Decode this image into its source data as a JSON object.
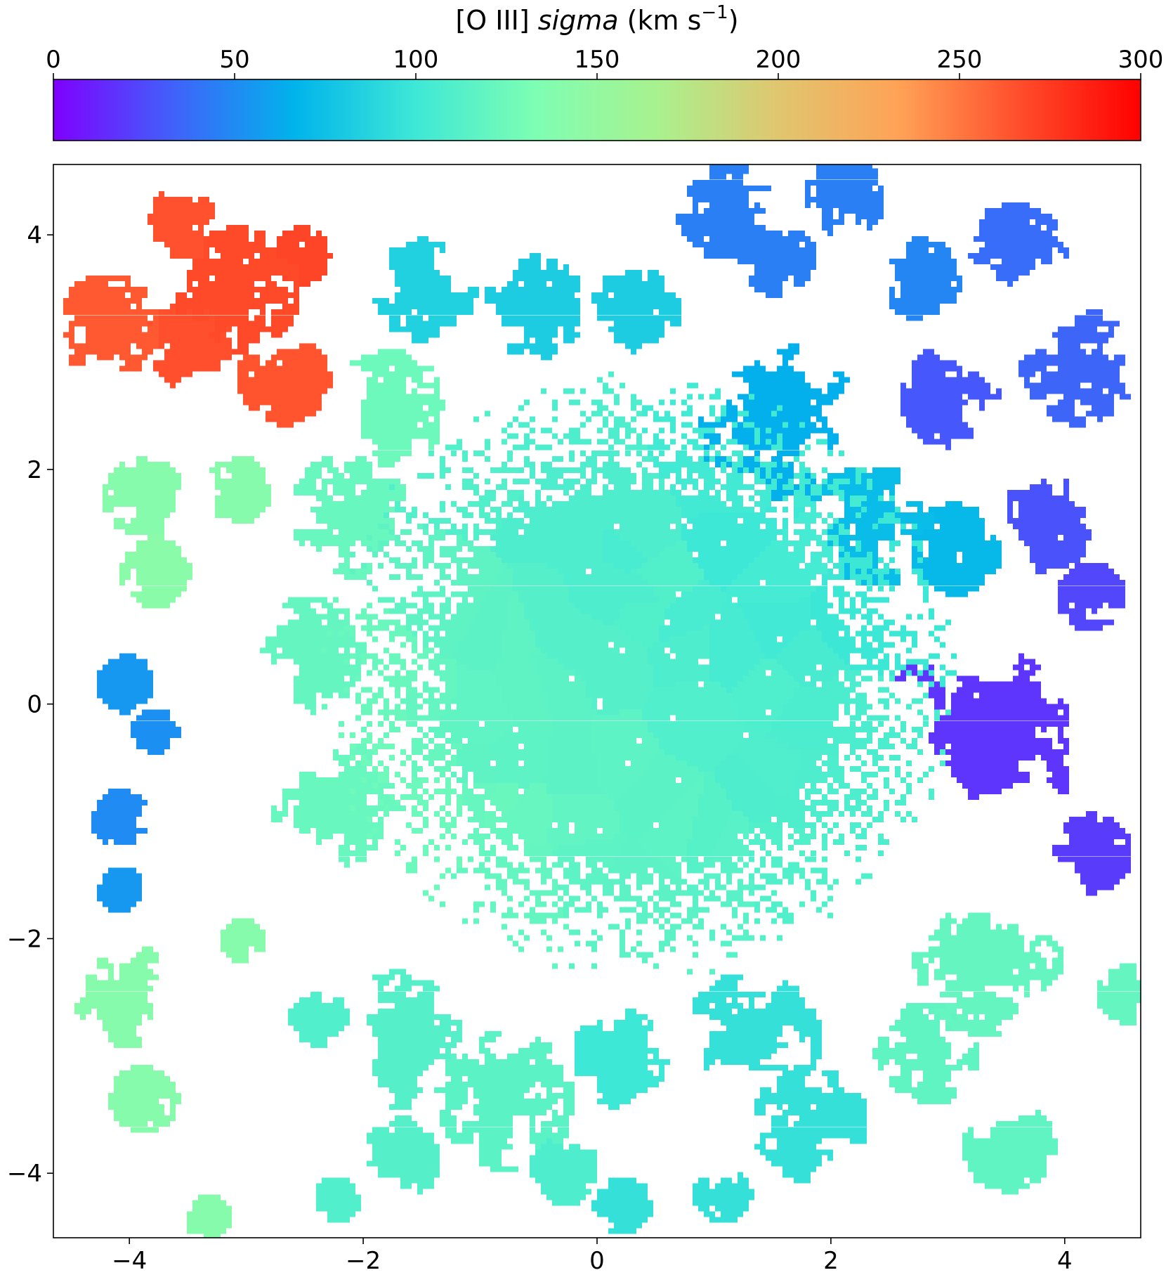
{
  "chart_data": {
    "type": "heatmap",
    "title": "",
    "colorbar": {
      "label_pre": "[O III] ",
      "label_italic": "sigma",
      "label_units": " (km s",
      "label_exp": "−1",
      "label_close": ")",
      "range": [
        0,
        300
      ],
      "ticks": [
        "0",
        "50",
        "100",
        "150",
        "200",
        "250",
        "300"
      ],
      "tick_values": [
        0,
        50,
        100,
        150,
        200,
        250,
        300
      ],
      "colormap": "rainbow",
      "colormap_stops": [
        "#7f00ff",
        "#4062fa",
        "#00b4eb",
        "#3ee8d6",
        "#7efeb3",
        "#a9f18e",
        "#e0c66f",
        "#ffa256",
        "#ff4d2b",
        "#ff0000"
      ],
      "placement": "top"
    },
    "xlim": [
      -4.65,
      4.65
    ],
    "ylim": [
      -4.55,
      4.6
    ],
    "xticks": [
      "−4",
      "−2",
      "0",
      "2",
      "4"
    ],
    "xtick_values": [
      -4,
      -2,
      0,
      2,
      4
    ],
    "yticks": [
      "−4",
      "−2",
      "0",
      "2",
      "4"
    ],
    "ytick_values": [
      -4,
      -2,
      0,
      2,
      4
    ],
    "xlabel": "",
    "ylabel": "",
    "grid": false,
    "clusters": [
      {
        "x": -3.5,
        "y": 4.1,
        "sigma": 265,
        "size": 0.35
      },
      {
        "x": -3.1,
        "y": 3.5,
        "sigma": 268,
        "size": 0.55
      },
      {
        "x": -4.2,
        "y": 3.2,
        "sigma": 262,
        "size": 0.45
      },
      {
        "x": -3.5,
        "y": 2.95,
        "sigma": 266,
        "size": 0.45
      },
      {
        "x": -2.7,
        "y": 2.75,
        "sigma": 264,
        "size": 0.4
      },
      {
        "x": -2.55,
        "y": 3.8,
        "sigma": 270,
        "size": 0.25
      },
      {
        "x": -3.9,
        "y": 1.75,
        "sigma": 140,
        "size": 0.35
      },
      {
        "x": -3.1,
        "y": 1.8,
        "sigma": 140,
        "size": 0.3
      },
      {
        "x": -3.8,
        "y": 1.1,
        "sigma": 142,
        "size": 0.3
      },
      {
        "x": -4.05,
        "y": 0.15,
        "sigma": 55,
        "size": 0.25
      },
      {
        "x": -3.8,
        "y": -0.25,
        "sigma": 52,
        "size": 0.2
      },
      {
        "x": -4.1,
        "y": -1.0,
        "sigma": 50,
        "size": 0.25
      },
      {
        "x": -4.1,
        "y": -1.6,
        "sigma": 55,
        "size": 0.2
      },
      {
        "x": -4.05,
        "y": -2.5,
        "sigma": 140,
        "size": 0.45
      },
      {
        "x": -3.9,
        "y": -3.4,
        "sigma": 140,
        "size": 0.3
      },
      {
        "x": -3.05,
        "y": -2.05,
        "sigma": 140,
        "size": 0.2
      },
      {
        "x": -3.35,
        "y": -4.4,
        "sigma": 140,
        "size": 0.2
      },
      {
        "x": -1.5,
        "y": 3.5,
        "sigma": 85,
        "size": 0.45
      },
      {
        "x": -0.55,
        "y": 3.35,
        "sigma": 82,
        "size": 0.45
      },
      {
        "x": 0.3,
        "y": 3.3,
        "sigma": 82,
        "size": 0.4
      },
      {
        "x": 1.1,
        "y": 4.2,
        "sigma": 45,
        "size": 0.45
      },
      {
        "x": 2.1,
        "y": 4.3,
        "sigma": 45,
        "size": 0.35
      },
      {
        "x": 1.5,
        "y": 3.8,
        "sigma": 45,
        "size": 0.35
      },
      {
        "x": 2.75,
        "y": 3.6,
        "sigma": 48,
        "size": 0.35
      },
      {
        "x": 3.55,
        "y": 3.8,
        "sigma": 38,
        "size": 0.45
      },
      {
        "x": 4.1,
        "y": 2.85,
        "sigma": 35,
        "size": 0.5
      },
      {
        "x": 3.0,
        "y": 2.6,
        "sigma": 30,
        "size": 0.45
      },
      {
        "x": 3.8,
        "y": 1.6,
        "sigma": 28,
        "size": 0.5
      },
      {
        "x": 4.2,
        "y": 0.9,
        "sigma": 24,
        "size": 0.3
      },
      {
        "x": 3.4,
        "y": -0.2,
        "sigma": 18,
        "size": 0.95
      },
      {
        "x": 4.2,
        "y": -1.3,
        "sigma": 20,
        "size": 0.35
      },
      {
        "x": 1.5,
        "y": 2.45,
        "sigma": 65,
        "size": 0.75
      },
      {
        "x": 2.3,
        "y": 1.5,
        "sigma": 72,
        "size": 0.55
      },
      {
        "x": 3.05,
        "y": 1.3,
        "sigma": 70,
        "size": 0.4
      },
      {
        "x": 3.3,
        "y": -2.2,
        "sigma": 120,
        "size": 0.65
      },
      {
        "x": 4.5,
        "y": -2.5,
        "sigma": 120,
        "size": 0.25
      },
      {
        "x": 2.8,
        "y": -3.0,
        "sigma": 118,
        "size": 0.45
      },
      {
        "x": 3.5,
        "y": -3.8,
        "sigma": 118,
        "size": 0.4
      },
      {
        "x": 1.8,
        "y": -3.6,
        "sigma": 95,
        "size": 0.5
      },
      {
        "x": 1.3,
        "y": -2.9,
        "sigma": 95,
        "size": 0.6
      },
      {
        "x": 0.25,
        "y": -3.0,
        "sigma": 100,
        "size": 0.5
      },
      {
        "x": 1.05,
        "y": -4.2,
        "sigma": 95,
        "size": 0.25
      },
      {
        "x": 0.2,
        "y": -4.3,
        "sigma": 95,
        "size": 0.25
      },
      {
        "x": -0.3,
        "y": -4.0,
        "sigma": 108,
        "size": 0.3
      },
      {
        "x": -0.8,
        "y": -3.4,
        "sigma": 115,
        "size": 0.6
      },
      {
        "x": -1.7,
        "y": -2.9,
        "sigma": 112,
        "size": 0.6
      },
      {
        "x": -1.7,
        "y": -3.9,
        "sigma": 112,
        "size": 0.35
      },
      {
        "x": -2.4,
        "y": -2.7,
        "sigma": 110,
        "size": 0.25
      },
      {
        "x": -2.25,
        "y": -4.25,
        "sigma": 110,
        "size": 0.2
      },
      {
        "x": -2.2,
        "y": -0.9,
        "sigma": 122,
        "size": 0.6
      },
      {
        "x": -2.5,
        "y": 0.4,
        "sigma": 120,
        "size": 0.5
      },
      {
        "x": -2.1,
        "y": 1.6,
        "sigma": 122,
        "size": 0.55
      },
      {
        "x": -1.8,
        "y": 2.5,
        "sigma": 125,
        "size": 0.5
      }
    ],
    "core": {
      "x": 0.35,
      "y": 0.2,
      "sigma_low": 97,
      "sigma_high": 125,
      "radius": 2.6
    }
  }
}
